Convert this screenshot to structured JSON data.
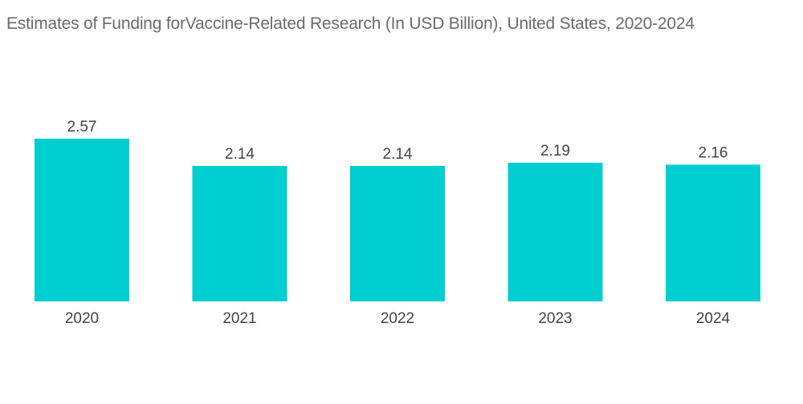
{
  "chart_data": {
    "type": "bar",
    "title": "Estimates of Funding forVaccine-Related Research (In USD Billion), United States, 2020-2024",
    "categories": [
      "2020",
      "2021",
      "2022",
      "2023",
      "2024"
    ],
    "values": [
      2.57,
      2.14,
      2.14,
      2.19,
      2.16
    ],
    "data_labels": [
      "2.57",
      "2.14",
      "2.14",
      "2.19",
      "2.16"
    ],
    "xlabel": "",
    "ylabel": "",
    "ylim": [
      0,
      2.57
    ],
    "grid": false,
    "legend": "none",
    "colors": {
      "bar": "#00ced1",
      "title": "#6b6b6b",
      "label": "#444444"
    }
  }
}
